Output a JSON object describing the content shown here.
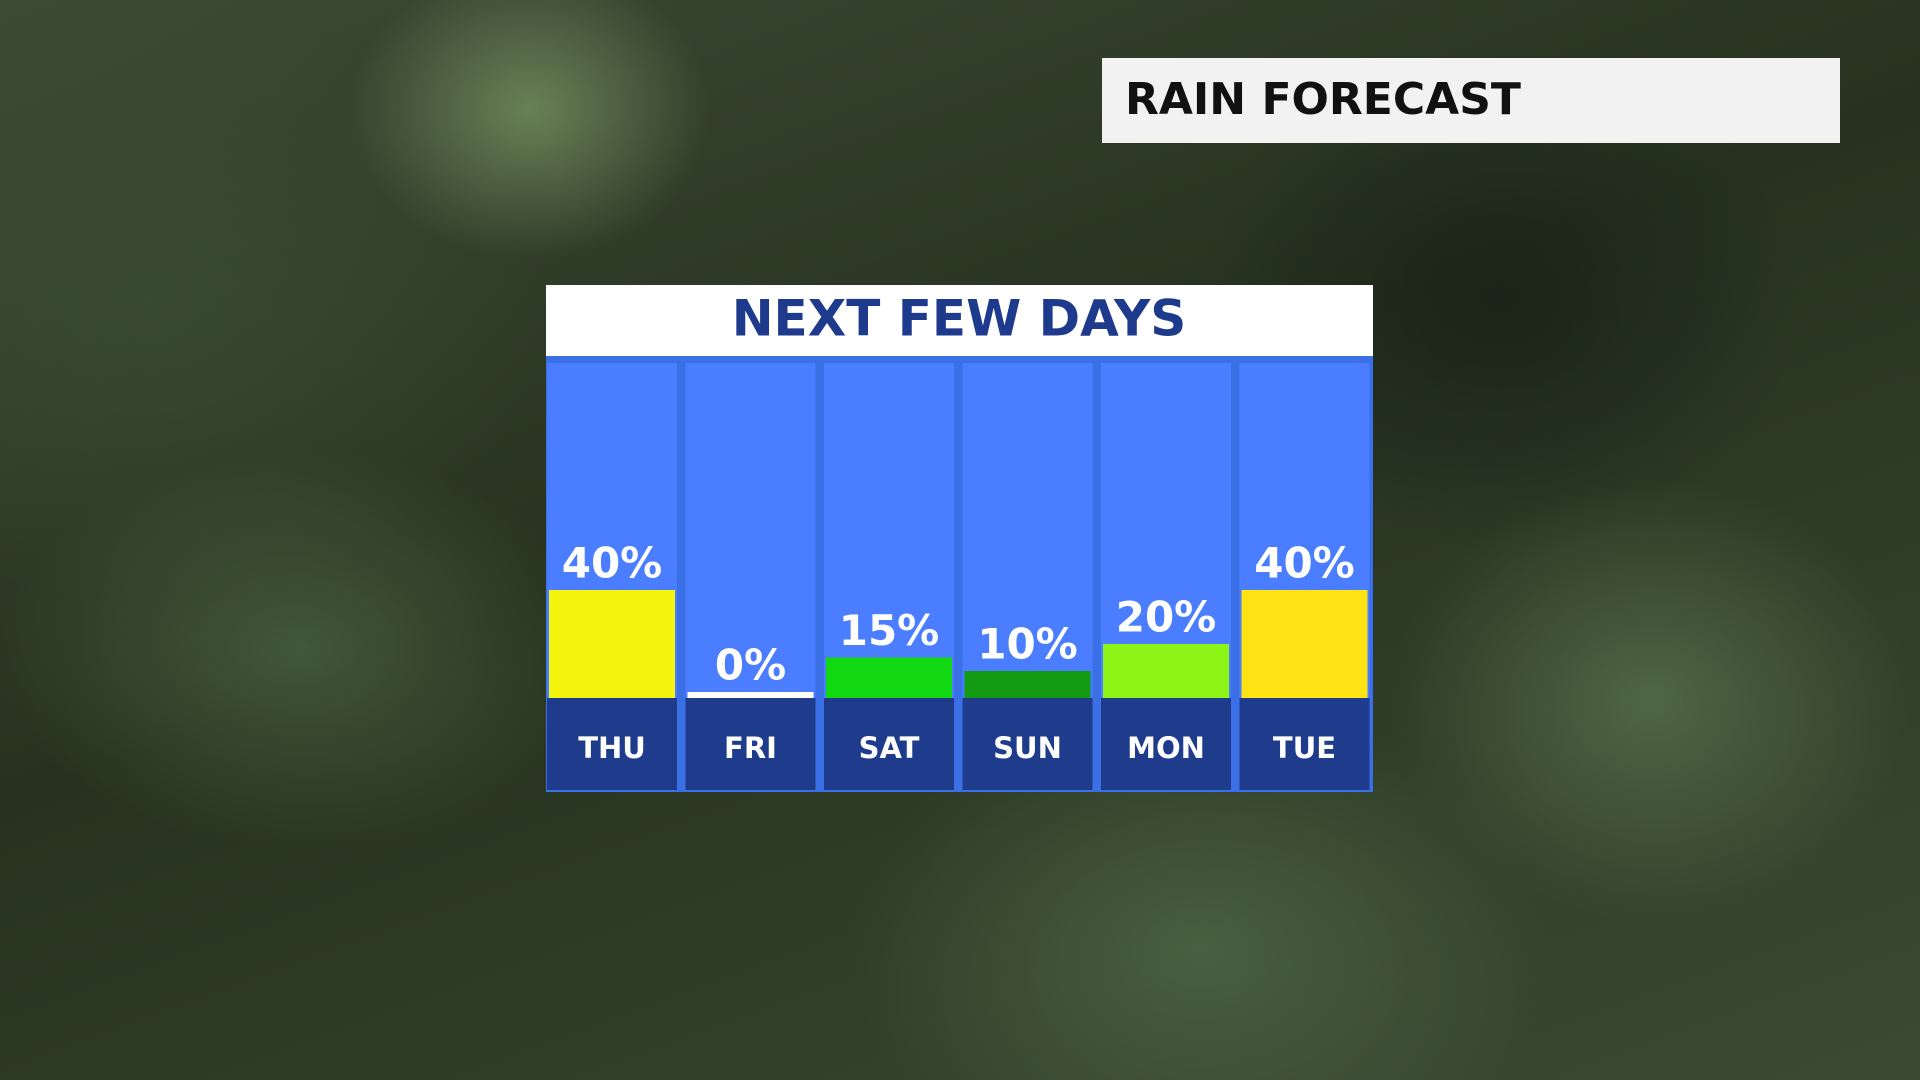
{
  "header": {
    "title": "RAIN FORECAST"
  },
  "chart_data": {
    "type": "bar",
    "title": "NEXT FEW DAYS",
    "categories": [
      "THU",
      "FRI",
      "SAT",
      "SUN",
      "MON",
      "TUE"
    ],
    "values": [
      40,
      0,
      15,
      10,
      20,
      40
    ],
    "value_labels": [
      "40%",
      "0%",
      "15%",
      "10%",
      "20%",
      "40%"
    ],
    "colors": [
      "#f4f40e",
      "#ffffff",
      "#12d812",
      "#129a12",
      "#8cf516",
      "#ffe313"
    ]
  }
}
